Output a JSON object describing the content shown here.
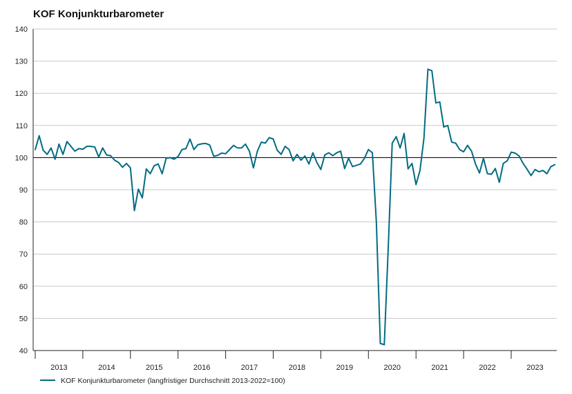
{
  "chart_data": {
    "type": "line",
    "title": "KOF Konjunkturbarometer",
    "xlabel": "",
    "ylabel": "",
    "ylim": [
      40,
      140
    ],
    "yticks": [
      40,
      50,
      60,
      70,
      80,
      90,
      100,
      110,
      120,
      130,
      140
    ],
    "grid": true,
    "reference_line": 100,
    "legend_position": "bottom-left",
    "x_start": "2013-01",
    "x_end": "2023-11",
    "x_tick_labels": [
      "2013",
      "2014",
      "2015",
      "2016",
      "2017",
      "2018",
      "2019",
      "2020",
      "2021",
      "2022",
      "2023"
    ],
    "series": [
      {
        "name": "KOF Konjunkturbarometer (langfristiger Durchschnitt 2013-2022=100)",
        "color": "#006b82",
        "values": [
          102.5,
          106.8,
          102.3,
          101.0,
          103.0,
          99.5,
          104.2,
          101.0,
          105.0,
          103.5,
          102.0,
          102.8,
          102.6,
          103.5,
          103.5,
          103.3,
          100.2,
          103.0,
          100.8,
          100.6,
          99.2,
          98.5,
          97.0,
          98.2,
          96.8,
          83.5,
          90.2,
          87.5,
          96.5,
          95.0,
          97.5,
          98.0,
          95.0,
          99.8,
          100.0,
          99.5,
          100.3,
          102.5,
          102.8,
          105.8,
          102.5,
          104.0,
          104.3,
          104.4,
          103.9,
          100.4,
          100.7,
          101.4,
          101.2,
          102.5,
          103.8,
          103.0,
          103.0,
          104.2,
          102.0,
          96.8,
          102.0,
          104.8,
          104.5,
          106.2,
          105.8,
          102.3,
          101.0,
          103.5,
          102.5,
          99.0,
          101.0,
          99.2,
          100.5,
          98.0,
          101.5,
          98.5,
          96.3,
          100.8,
          101.5,
          100.6,
          101.5,
          102.0,
          96.6,
          99.8,
          97.2,
          97.6,
          98.0,
          99.8,
          102.5,
          101.5,
          80.0,
          42.2,
          41.8,
          72.0,
          104.5,
          106.5,
          103.0,
          107.5,
          96.5,
          98.2,
          91.6,
          96.0,
          106.0,
          127.5,
          127.0,
          117.0,
          117.3,
          109.5,
          110.0,
          104.8,
          104.5,
          102.5,
          101.8,
          103.8,
          102.0,
          98.0,
          95.2,
          99.8,
          95.0,
          94.8,
          96.6,
          92.3,
          98.2,
          99.0,
          101.7,
          101.4,
          100.5,
          98.2,
          96.4,
          94.4,
          96.3,
          95.6,
          96.0,
          95.0,
          97.2,
          97.8
        ]
      }
    ]
  }
}
